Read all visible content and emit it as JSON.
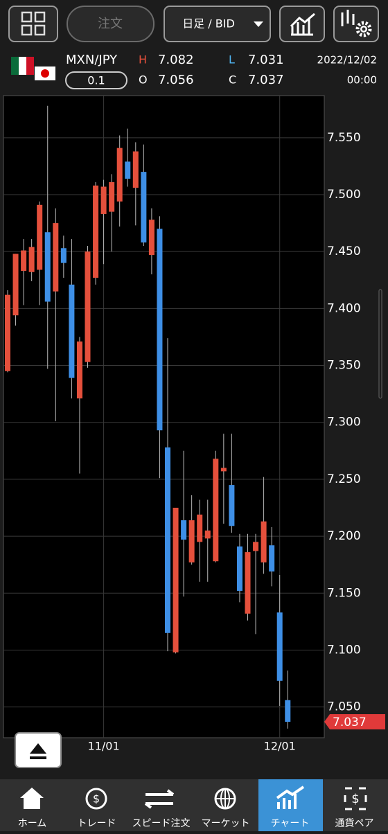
{
  "header": {
    "order_button": "注文",
    "timeframe": "日足 / BID",
    "symbol": "MXN/JPY",
    "lot": "0.1",
    "high_label": "H",
    "high": "7.082",
    "low_label": "L",
    "low": "7.031",
    "open_label": "O",
    "open": "7.056",
    "close_label": "C",
    "close": "7.037",
    "date": "2022/12/02",
    "time": "00:00"
  },
  "chart_data": {
    "type": "candlestick",
    "categories": [
      null,
      null,
      null,
      null,
      null,
      null,
      null,
      null,
      null,
      null,
      null,
      null,
      "11/01",
      null,
      null,
      null,
      null,
      null,
      null,
      null,
      null,
      null,
      null,
      null,
      null,
      null,
      null,
      null,
      null,
      null,
      null,
      null,
      null,
      null,
      "12/01",
      null
    ],
    "open": [
      7.345,
      7.394,
      7.433,
      7.432,
      7.434,
      7.467,
      7.415,
      7.453,
      7.421,
      7.321,
      7.353,
      7.427,
      7.483,
      7.485,
      7.494,
      7.529,
      7.506,
      7.52,
      7.447,
      7.47,
      7.278,
      7.098,
      7.214,
      7.177,
      7.195,
      7.198,
      7.178,
      7.257,
      7.245,
      7.191,
      7.132,
      7.187,
      7.177,
      7.192,
      7.133,
      7.056
    ],
    "high": [
      7.416,
      7.448,
      7.461,
      7.461,
      7.494,
      7.578,
      7.488,
      7.464,
      7.461,
      7.375,
      7.455,
      7.511,
      7.513,
      7.518,
      7.552,
      7.558,
      7.546,
      7.544,
      7.488,
      7.481,
      7.374,
      7.225,
      7.275,
      7.236,
      7.232,
      7.232,
      7.275,
      7.29,
      7.29,
      7.202,
      7.202,
      7.202,
      7.252,
      7.208,
      7.166,
      7.082
    ],
    "low": [
      7.344,
      7.385,
      7.403,
      7.424,
      7.403,
      7.347,
      7.301,
      7.427,
      7.321,
      7.255,
      7.348,
      7.421,
      7.439,
      7.45,
      7.472,
      7.507,
      7.473,
      7.455,
      7.43,
      7.251,
      7.099,
      7.097,
      7.147,
      7.175,
      7.16,
      7.16,
      7.177,
      7.211,
      7.203,
      7.142,
      7.126,
      7.114,
      7.167,
      7.156,
      7.051,
      7.031
    ],
    "close": [
      7.412,
      7.448,
      7.451,
      7.454,
      7.491,
      7.406,
      7.475,
      7.44,
      7.339,
      7.371,
      7.45,
      7.508,
      7.507,
      7.511,
      7.541,
      7.514,
      7.538,
      7.458,
      7.478,
      7.293,
      7.115,
      7.225,
      7.197,
      7.214,
      7.219,
      7.205,
      7.268,
      7.26,
      7.209,
      7.152,
      7.186,
      7.195,
      7.213,
      7.169,
      7.073,
      7.037
    ],
    "up_color": "#e5503c",
    "down_color": "#3e8fe6",
    "ylim": [
      7.023,
      7.587
    ],
    "yticks": [
      {
        "value": 7.05,
        "label": "7.050"
      },
      {
        "value": 7.1,
        "label": "7.100"
      },
      {
        "value": 7.15,
        "label": "7.150"
      },
      {
        "value": 7.2,
        "label": "7.200"
      },
      {
        "value": 7.25,
        "label": "7.250"
      },
      {
        "value": 7.3,
        "label": "7.300"
      },
      {
        "value": 7.35,
        "label": "7.350"
      },
      {
        "value": 7.4,
        "label": "7.400"
      },
      {
        "value": 7.45,
        "label": "7.450"
      },
      {
        "value": 7.5,
        "label": "7.500"
      },
      {
        "value": 7.55,
        "label": "7.550"
      }
    ],
    "last_price": {
      "value": 7.037,
      "label": "7.037"
    },
    "grid": true
  },
  "nav": [
    "ホーム",
    "トレード",
    "スピード注文",
    "マーケット",
    "チャート",
    "通貨ペア"
  ]
}
